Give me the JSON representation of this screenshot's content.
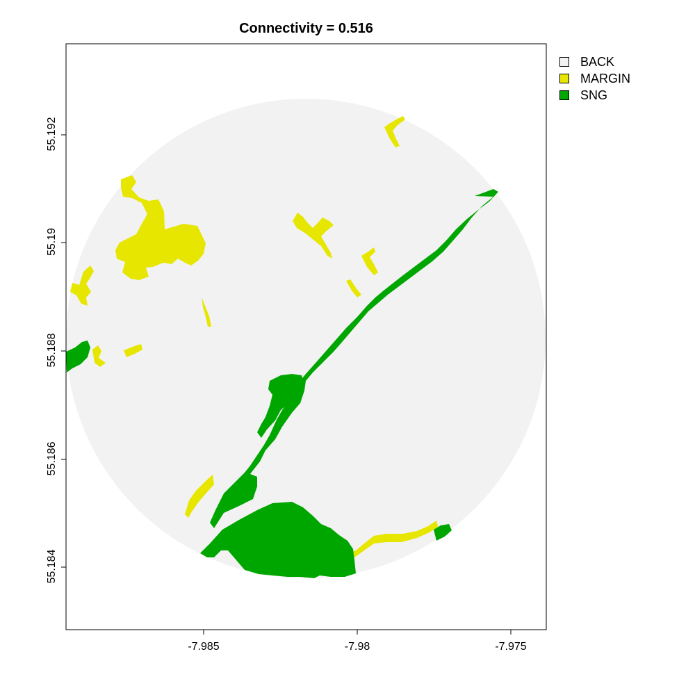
{
  "title": "Connectivity = 0.516",
  "axes": {
    "x_ticks": [
      "-7.985",
      "-7.98",
      "-7.975"
    ],
    "y_ticks": [
      "55.184",
      "55.186",
      "55.188",
      "55.19",
      "55.192"
    ]
  },
  "legend": [
    {
      "label": "BACK",
      "color": "#f2f2f2"
    },
    {
      "label": "MARGIN",
      "color": "#e6e600"
    },
    {
      "label": "SNG",
      "color": "#00a600"
    }
  ],
  "colors": {
    "back": "#f2f2f2",
    "margin": "#e6e600",
    "sng": "#00a600",
    "axis": "#000000"
  }
}
